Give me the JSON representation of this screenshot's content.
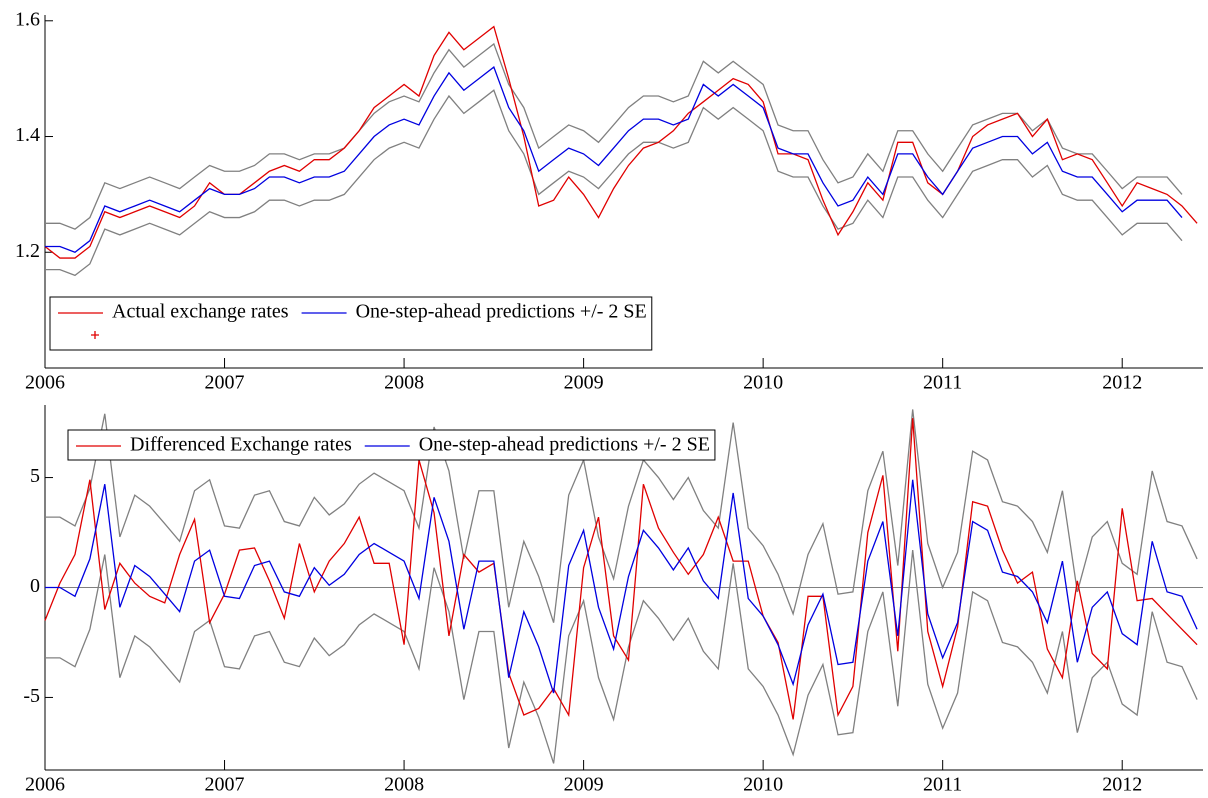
{
  "chart_data": [
    {
      "type": "line",
      "x": [
        2006,
        2006.083,
        2006.167,
        2006.25,
        2006.333,
        2006.417,
        2006.5,
        2006.583,
        2006.667,
        2006.75,
        2006.833,
        2006.917,
        2007,
        2007.083,
        2007.167,
        2007.25,
        2007.333,
        2007.417,
        2007.5,
        2007.583,
        2007.667,
        2007.75,
        2007.833,
        2007.917,
        2008,
        2008.083,
        2008.167,
        2008.25,
        2008.333,
        2008.417,
        2008.5,
        2008.583,
        2008.667,
        2008.75,
        2008.833,
        2008.917,
        2009,
        2009.083,
        2009.167,
        2009.25,
        2009.333,
        2009.417,
        2009.5,
        2009.583,
        2009.667,
        2009.75,
        2009.833,
        2009.917,
        2010,
        2010.083,
        2010.167,
        2010.25,
        2010.333,
        2010.417,
        2010.5,
        2010.583,
        2010.667,
        2010.75,
        2010.833,
        2010.917,
        2011,
        2011.083,
        2011.167,
        2011.25,
        2011.333,
        2011.417,
        2011.5,
        2011.583,
        2011.667,
        2011.75,
        2011.833,
        2011.917,
        2012,
        2012.083,
        2012.167,
        2012.25,
        2012.333,
        2012.417
      ],
      "series": [
        {
          "color": "#808080",
          "values": [
            1.25,
            1.25,
            1.24,
            1.26,
            1.32,
            1.31,
            1.32,
            1.33,
            1.32,
            1.31,
            1.33,
            1.35,
            1.34,
            1.34,
            1.35,
            1.37,
            1.37,
            1.36,
            1.37,
            1.37,
            1.38,
            1.41,
            1.44,
            1.46,
            1.47,
            1.46,
            1.51,
            1.55,
            1.52,
            1.54,
            1.56,
            1.49,
            1.45,
            1.38,
            1.4,
            1.42,
            1.41,
            1.39,
            1.42,
            1.45,
            1.47,
            1.47,
            1.46,
            1.47,
            1.53,
            1.51,
            1.53,
            1.51,
            1.49,
            1.42,
            1.41,
            1.41,
            1.36,
            1.32,
            1.33,
            1.37,
            1.34,
            1.41,
            1.41,
            1.37,
            1.34,
            1.38,
            1.42,
            1.43,
            1.44,
            1.44,
            1.41,
            1.43,
            1.38,
            1.37,
            1.37,
            1.34,
            1.31,
            1.33,
            1.33,
            1.33,
            1.3,
            null
          ]
        },
        {
          "color": "#808080",
          "values": [
            1.17,
            1.17,
            1.16,
            1.18,
            1.24,
            1.23,
            1.24,
            1.25,
            1.24,
            1.23,
            1.25,
            1.27,
            1.26,
            1.26,
            1.27,
            1.29,
            1.29,
            1.28,
            1.29,
            1.29,
            1.3,
            1.33,
            1.36,
            1.38,
            1.39,
            1.38,
            1.43,
            1.47,
            1.44,
            1.46,
            1.48,
            1.41,
            1.37,
            1.3,
            1.32,
            1.34,
            1.33,
            1.31,
            1.34,
            1.37,
            1.39,
            1.39,
            1.38,
            1.39,
            1.45,
            1.43,
            1.45,
            1.43,
            1.41,
            1.34,
            1.33,
            1.33,
            1.28,
            1.24,
            1.25,
            1.29,
            1.26,
            1.33,
            1.33,
            1.29,
            1.26,
            1.3,
            1.34,
            1.35,
            1.36,
            1.36,
            1.33,
            1.35,
            1.3,
            1.29,
            1.29,
            1.26,
            1.23,
            1.25,
            1.25,
            1.25,
            1.22,
            null
          ]
        },
        {
          "name": "Actual exchange rates",
          "color": "#e00000",
          "values": [
            1.21,
            1.19,
            1.19,
            1.21,
            1.27,
            1.26,
            1.27,
            1.28,
            1.27,
            1.26,
            1.28,
            1.32,
            1.3,
            1.3,
            1.32,
            1.34,
            1.35,
            1.34,
            1.36,
            1.36,
            1.38,
            1.41,
            1.45,
            1.47,
            1.49,
            1.47,
            1.54,
            1.58,
            1.55,
            1.57,
            1.59,
            1.5,
            1.4,
            1.28,
            1.29,
            1.33,
            1.3,
            1.26,
            1.31,
            1.35,
            1.38,
            1.39,
            1.41,
            1.44,
            1.46,
            1.48,
            1.5,
            1.49,
            1.46,
            1.37,
            1.37,
            1.36,
            1.29,
            1.23,
            1.27,
            1.32,
            1.29,
            1.39,
            1.39,
            1.32,
            1.3,
            1.34,
            1.4,
            1.42,
            1.43,
            1.44,
            1.4,
            1.43,
            1.36,
            1.37,
            1.36,
            1.32,
            1.28,
            1.32,
            1.31,
            1.3,
            1.28,
            1.25
          ]
        },
        {
          "name": "One-step-ahead predictions +/- 2 SE",
          "color": "#0000e0",
          "values": [
            1.21,
            1.21,
            1.2,
            1.22,
            1.28,
            1.27,
            1.28,
            1.29,
            1.28,
            1.27,
            1.29,
            1.31,
            1.3,
            1.3,
            1.31,
            1.33,
            1.33,
            1.32,
            1.33,
            1.33,
            1.34,
            1.37,
            1.4,
            1.42,
            1.43,
            1.42,
            1.47,
            1.51,
            1.48,
            1.5,
            1.52,
            1.45,
            1.41,
            1.34,
            1.36,
            1.38,
            1.37,
            1.35,
            1.38,
            1.41,
            1.43,
            1.43,
            1.42,
            1.43,
            1.49,
            1.47,
            1.49,
            1.47,
            1.45,
            1.38,
            1.37,
            1.37,
            1.32,
            1.28,
            1.29,
            1.33,
            1.3,
            1.37,
            1.37,
            1.33,
            1.3,
            1.34,
            1.38,
            1.39,
            1.4,
            1.4,
            1.37,
            1.39,
            1.34,
            1.33,
            1.33,
            1.3,
            1.27,
            1.29,
            1.29,
            1.29,
            1.26,
            null
          ]
        }
      ],
      "xlim": [
        2006,
        2012.45
      ],
      "xticks": [
        2006,
        2007,
        2008,
        2009,
        2010,
        2011,
        2012
      ],
      "ylim": [
        1.0,
        1.61
      ],
      "yticks": [
        1.2,
        1.4,
        1.6
      ],
      "legend": "lower left",
      "zero_line": false
    },
    {
      "type": "line",
      "x": [
        2006,
        2006.083,
        2006.167,
        2006.25,
        2006.333,
        2006.417,
        2006.5,
        2006.583,
        2006.667,
        2006.75,
        2006.833,
        2006.917,
        2007,
        2007.083,
        2007.167,
        2007.25,
        2007.333,
        2007.417,
        2007.5,
        2007.583,
        2007.667,
        2007.75,
        2007.833,
        2007.917,
        2008,
        2008.083,
        2008.167,
        2008.25,
        2008.333,
        2008.417,
        2008.5,
        2008.583,
        2008.667,
        2008.75,
        2008.833,
        2008.917,
        2009,
        2009.083,
        2009.167,
        2009.25,
        2009.333,
        2009.417,
        2009.5,
        2009.583,
        2009.667,
        2009.75,
        2009.833,
        2009.917,
        2010,
        2010.083,
        2010.167,
        2010.25,
        2010.333,
        2010.417,
        2010.5,
        2010.583,
        2010.667,
        2010.75,
        2010.833,
        2010.917,
        2011,
        2011.083,
        2011.167,
        2011.25,
        2011.333,
        2011.417,
        2011.5,
        2011.583,
        2011.667,
        2011.75,
        2011.833,
        2011.917,
        2012,
        2012.083,
        2012.167,
        2012.25,
        2012.333,
        2012.417
      ],
      "series": [
        {
          "color": "#808080",
          "values": [
            3.2,
            3.2,
            2.8,
            4.5,
            7.9,
            2.3,
            4.2,
            3.7,
            2.9,
            2.1,
            4.4,
            4.9,
            2.8,
            2.7,
            4.2,
            4.4,
            3.0,
            2.8,
            4.1,
            3.3,
            3.8,
            4.7,
            5.2,
            4.8,
            4.4,
            2.7,
            7.3,
            5.3,
            1.3,
            4.4,
            4.4,
            -0.9,
            2.1,
            0.5,
            -1.6,
            4.2,
            5.8,
            2.3,
            0.4,
            3.7,
            5.8,
            5.0,
            4.0,
            5.0,
            3.5,
            2.7,
            7.5,
            2.7,
            1.9,
            0.6,
            -1.2,
            1.5,
            2.9,
            -0.3,
            -0.2,
            4.4,
            6.2,
            1.0,
            8.1,
            2.0,
            0.0,
            1.6,
            6.2,
            5.8,
            3.9,
            3.7,
            3.0,
            1.6,
            4.4,
            -0.2,
            2.3,
            3.0,
            1.1,
            0.6,
            5.3,
            3.0,
            2.8,
            1.3
          ]
        },
        {
          "color": "#808080",
          "values": [
            -3.2,
            -3.2,
            -3.6,
            -1.9,
            1.5,
            -4.1,
            -2.2,
            -2.7,
            -3.5,
            -4.3,
            -2.0,
            -1.5,
            -3.6,
            -3.7,
            -2.2,
            -2.0,
            -3.4,
            -3.6,
            -2.3,
            -3.1,
            -2.6,
            -1.7,
            -1.2,
            -1.6,
            -2.0,
            -3.7,
            0.9,
            -1.1,
            -5.1,
            -2.0,
            -2.0,
            -7.3,
            -4.3,
            -5.9,
            -8.0,
            -2.2,
            -0.6,
            -4.1,
            -6.0,
            -2.7,
            -0.6,
            -1.4,
            -2.4,
            -1.4,
            -2.9,
            -3.7,
            1.1,
            -3.7,
            -4.5,
            -5.8,
            -7.6,
            -4.9,
            -3.5,
            -6.7,
            -6.6,
            -2.0,
            -0.2,
            -5.4,
            1.7,
            -4.4,
            -6.4,
            -4.8,
            -0.2,
            -0.6,
            -2.5,
            -2.7,
            -3.4,
            -4.8,
            -2.0,
            -6.6,
            -4.1,
            -3.4,
            -5.3,
            -5.8,
            -1.1,
            -3.4,
            -3.6,
            -5.1
          ]
        },
        {
          "name": "Differenced Exchange rates",
          "color": "#e00000",
          "values": [
            -1.5,
            0.2,
            1.5,
            4.9,
            -1.0,
            1.1,
            0.2,
            -0.4,
            -0.7,
            1.5,
            3.1,
            -1.6,
            -0.3,
            1.7,
            1.8,
            0.3,
            -1.4,
            2.0,
            -0.2,
            1.2,
            2.0,
            3.2,
            1.1,
            1.1,
            -2.6,
            5.8,
            3.4,
            -2.2,
            1.5,
            0.7,
            1.1,
            -3.9,
            -5.8,
            -5.5,
            -4.6,
            -5.8,
            0.9,
            3.2,
            -2.2,
            -3.3,
            4.7,
            2.7,
            1.6,
            0.6,
            1.5,
            3.2,
            1.2,
            1.2,
            -1.3,
            -2.5,
            -6.0,
            -0.4,
            -0.4,
            -5.8,
            -4.5,
            2.5,
            5.1,
            -2.9,
            7.7,
            -2.0,
            -4.5,
            -1.8,
            3.9,
            3.7,
            1.7,
            0.2,
            0.7,
            -2.8,
            -4.1,
            0.3,
            -3.0,
            -3.7,
            3.6,
            -0.6,
            -0.5,
            -1.2,
            -1.9,
            -2.6
          ]
        },
        {
          "name": "One-step-ahead predictions +/- 2 SE",
          "color": "#0000e0",
          "values": [
            0,
            0,
            -0.4,
            1.3,
            4.7,
            -0.9,
            1.0,
            0.5,
            -0.3,
            -1.1,
            1.2,
            1.7,
            -0.4,
            -0.5,
            1.0,
            1.2,
            -0.2,
            -0.4,
            0.9,
            0.1,
            0.6,
            1.5,
            2.0,
            1.6,
            1.2,
            -0.5,
            4.1,
            2.1,
            -1.9,
            1.2,
            1.2,
            -4.1,
            -1.1,
            -2.7,
            -4.8,
            1.0,
            2.6,
            -0.9,
            -2.8,
            0.5,
            2.6,
            1.8,
            0.8,
            1.8,
            0.3,
            -0.5,
            4.3,
            -0.5,
            -1.3,
            -2.6,
            -4.4,
            -1.7,
            -0.3,
            -3.5,
            -3.4,
            1.2,
            3.0,
            -2.2,
            4.9,
            -1.2,
            -3.2,
            -1.6,
            3.0,
            2.6,
            0.7,
            0.5,
            -0.2,
            -1.6,
            1.2,
            -3.4,
            -0.9,
            -0.2,
            -2.1,
            -2.6,
            2.1,
            -0.2,
            -0.4,
            -1.9
          ]
        }
      ],
      "xlim": [
        2006,
        2012.45
      ],
      "xticks": [
        2006,
        2007,
        2008,
        2009,
        2010,
        2011,
        2012
      ],
      "ylim": [
        -8.3,
        8.3
      ],
      "yticks": [
        -5,
        0,
        5
      ],
      "legend": "upper left",
      "zero_line": true
    }
  ]
}
